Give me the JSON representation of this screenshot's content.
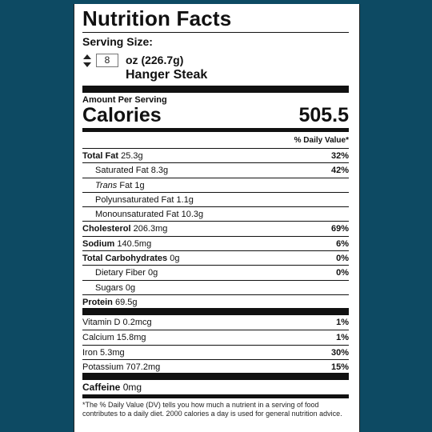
{
  "label": {
    "title": "Nutrition Facts",
    "serving_label": "Serving Size:",
    "quantity": "8",
    "unit": "oz (226.7g)",
    "food": "Hanger Steak",
    "amount_per_serving": "Amount Per Serving",
    "calories_label": "Calories",
    "calories_value": "505.5",
    "dv_header": "% Daily Value*",
    "nutrients": [
      {
        "name": "Total Fat",
        "amount": "25.3g",
        "pct": "32%"
      },
      {
        "name": "Saturated Fat",
        "amount": "8.3g",
        "pct": "42%"
      },
      {
        "name": "Trans",
        "amount": "Fat 1g",
        "pct": ""
      },
      {
        "name": "Polyunsaturated Fat",
        "amount": "1.1g",
        "pct": ""
      },
      {
        "name": "Monounsaturated Fat",
        "amount": "10.3g",
        "pct": ""
      },
      {
        "name": "Cholesterol",
        "amount": "206.3mg",
        "pct": "69%"
      },
      {
        "name": "Sodium",
        "amount": "140.5mg",
        "pct": "6%"
      },
      {
        "name": "Total Carbohydrates",
        "amount": "0g",
        "pct": "0%"
      },
      {
        "name": "Dietary Fiber",
        "amount": "0g",
        "pct": "0%"
      },
      {
        "name": "Sugars",
        "amount": "0g",
        "pct": ""
      },
      {
        "name": "Protein",
        "amount": "69.5g",
        "pct": ""
      }
    ],
    "vitamins": [
      {
        "name": "Vitamin D",
        "amount": "0.2mcg",
        "pct": "1%"
      },
      {
        "name": "Calcium",
        "amount": "15.8mg",
        "pct": "1%"
      },
      {
        "name": "Iron",
        "amount": "5.3mg",
        "pct": "30%"
      },
      {
        "name": "Potassium",
        "amount": "707.2mg",
        "pct": "15%"
      }
    ],
    "caffeine": {
      "name": "Caffeine",
      "amount": "0mg"
    },
    "footnote": "*The % Daily Value (DV) tells you how much a nutrient in a serving of food contributes to a daily diet. 2000 calories a day is used for general nutrition advice."
  },
  "colors": {
    "background": "#0d4a63",
    "label": "#ffffff",
    "ink": "#111111"
  },
  "icons": {
    "stepper": "up-down-stepper-icon"
  }
}
